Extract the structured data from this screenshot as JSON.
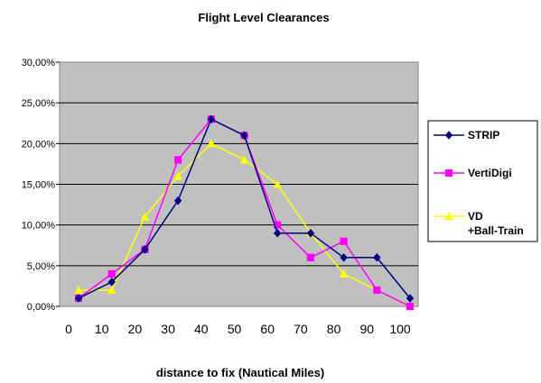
{
  "chart_data": {
    "type": "line",
    "title": "Flight Level Clearances",
    "xlabel": "distance to fix (Nautical Miles)",
    "ylabel": "",
    "ylim": [
      0,
      30
    ],
    "xlim": [
      0,
      100
    ],
    "y_ticks": [
      0,
      5,
      10,
      15,
      20,
      25,
      30
    ],
    "y_tick_labels": [
      "0,00%",
      "5,00%",
      "10,00%",
      "15,00%",
      "20,00%",
      "25,00%",
      "30,00%"
    ],
    "x_ticks": [
      0,
      10,
      20,
      30,
      40,
      50,
      60,
      70,
      80,
      90,
      100
    ],
    "x_tick_labels": [
      "0",
      "10",
      "20",
      "30",
      "40",
      "50",
      "60",
      "70",
      "80",
      "90",
      "100"
    ],
    "x": [
      3,
      13,
      23,
      33,
      43,
      53,
      63,
      73,
      83,
      93,
      103
    ],
    "grid": "horizontal",
    "plot_background": "#c0c0c0",
    "legend_position": "right",
    "series": [
      {
        "name": "STRIP",
        "color": "#000080",
        "marker": "diamond",
        "values": [
          1,
          3,
          7,
          13,
          23,
          21,
          9,
          9,
          6,
          6,
          1
        ]
      },
      {
        "name": "VertiDigi",
        "color": "#ff00ff",
        "marker": "square",
        "values": [
          1,
          4,
          7,
          18,
          23,
          21,
          10,
          6,
          8,
          2,
          0
        ]
      },
      {
        "name": "VD\n+Ball-Train",
        "color": "#ffff00",
        "marker": "triangle",
        "values": [
          2,
          2,
          11,
          16,
          20,
          18,
          15,
          9,
          4,
          2,
          0
        ]
      }
    ]
  }
}
